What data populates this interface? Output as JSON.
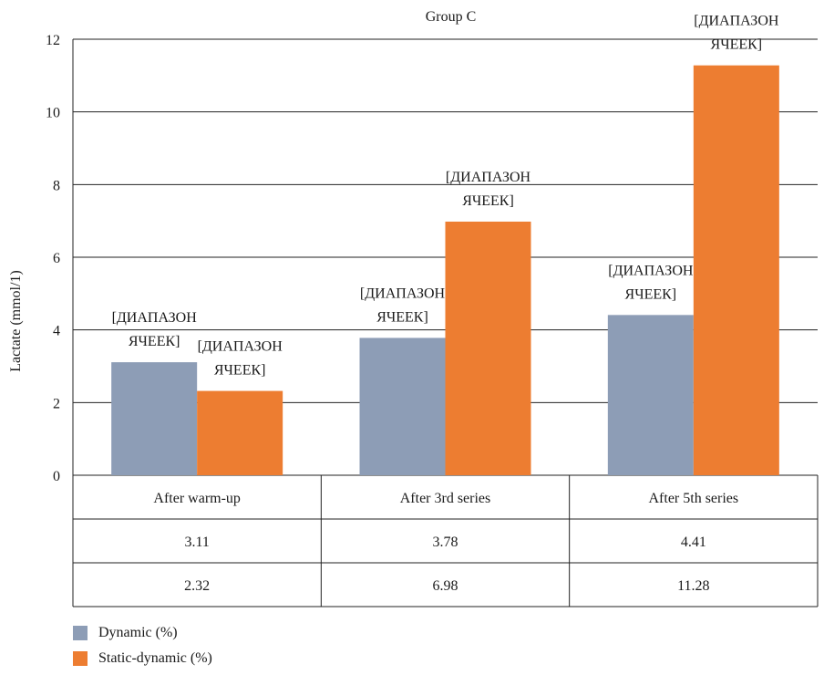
{
  "chart_data": {
    "type": "bar",
    "title": "Group C",
    "ylabel": "Lactate (mmol/1)",
    "ylim": [
      0,
      12
    ],
    "yticks": [
      0,
      2,
      4,
      6,
      8,
      10,
      12
    ],
    "grid": true,
    "categories": [
      "After warm-up",
      "After 3rd series",
      "After 5th series"
    ],
    "series": [
      {
        "name": "Dynamic (%)",
        "color": "#8d9db6",
        "values": [
          3.11,
          3.78,
          4.41
        ],
        "table_values": [
          "3.11",
          "3.78",
          "4.41"
        ]
      },
      {
        "name": "Static-dynamic (%)",
        "color": "#ed7d31",
        "values": [
          2.32,
          6.98,
          11.28
        ],
        "table_values": [
          "2.32",
          "6.98",
          "11.28"
        ]
      }
    ],
    "data_labels": [
      [
        "[ДИАПАЗОН",
        "ЯЧЕЕК]"
      ],
      [
        "[ДИАПАЗОН",
        "ЯЧЕЕК]"
      ]
    ],
    "legend": "bottom-left",
    "data_table": true
  }
}
